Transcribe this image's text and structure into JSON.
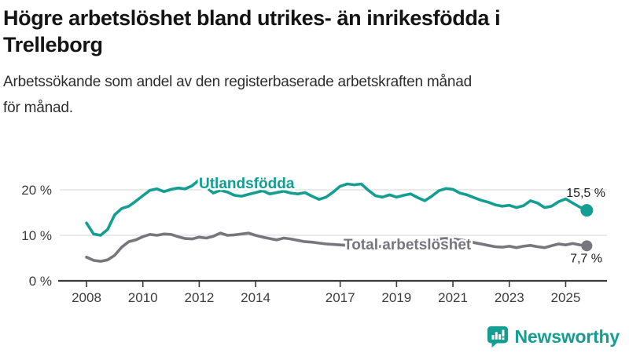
{
  "header": {
    "title_line1": "Högre arbetslöshet bland utrikes- än inrikesfödda i",
    "title_line2": "Trelleborg",
    "subtitle_line1": "Arbetssökande som andel av den registerbaserade arbetskraften månad",
    "subtitle_line2": "för månad."
  },
  "colors": {
    "teal": "#149e91",
    "gray": "#76767c",
    "axis_text": "#3c3c3c",
    "gridline": "#dcdcdc",
    "baseline": "#3a3a3a",
    "value_label": "#222222"
  },
  "chart_data": {
    "type": "line",
    "title": "Högre arbetslöshet bland utrikes- än inrikesfödda i Trelleborg",
    "subtitle": "Arbetssökande som andel av den registerbaserade arbetskraften månad för månad.",
    "xlabel": "",
    "ylabel": "",
    "xlim": [
      2007.05,
      2026.45
    ],
    "ylim": [
      0,
      26
    ],
    "grid": "horizontal",
    "legend_position": "inline-labels",
    "y_ticks": [
      {
        "value": 0,
        "label": "0 %"
      },
      {
        "value": 10,
        "label": "10 %"
      },
      {
        "value": 20,
        "label": "20 %"
      }
    ],
    "x_ticks": [
      {
        "value": 2008,
        "label": "2008"
      },
      {
        "value": 2010,
        "label": "2010"
      },
      {
        "value": 2012,
        "label": "2012"
      },
      {
        "value": 2014,
        "label": "2014"
      },
      {
        "value": 2017,
        "label": "2017"
      },
      {
        "value": 2019,
        "label": "2019"
      },
      {
        "value": 2021,
        "label": "2021"
      },
      {
        "value": 2023,
        "label": "2023"
      },
      {
        "value": 2025,
        "label": "2025"
      }
    ],
    "x": [
      2008.0,
      2008.25,
      2008.5,
      2008.75,
      2009.0,
      2009.25,
      2009.5,
      2009.75,
      2010.0,
      2010.25,
      2010.5,
      2010.75,
      2011.0,
      2011.25,
      2011.5,
      2011.75,
      2012.0,
      2012.25,
      2012.5,
      2012.75,
      2013.0,
      2013.25,
      2013.5,
      2013.75,
      2014.0,
      2014.25,
      2014.5,
      2014.75,
      2015.0,
      2015.25,
      2015.5,
      2015.75,
      2016.0,
      2016.25,
      2016.5,
      2016.75,
      2017.0,
      2017.25,
      2017.5,
      2017.75,
      2018.0,
      2018.25,
      2018.5,
      2018.75,
      2019.0,
      2019.25,
      2019.5,
      2019.75,
      2020.0,
      2020.25,
      2020.5,
      2020.75,
      2021.0,
      2021.25,
      2021.5,
      2021.75,
      2022.0,
      2022.25,
      2022.5,
      2022.75,
      2023.0,
      2023.25,
      2023.5,
      2023.75,
      2024.0,
      2024.25,
      2024.5,
      2024.75,
      2025.0,
      2025.25,
      2025.5,
      2025.75
    ],
    "series": [
      {
        "name": "Utlandsfödda",
        "color": "#149e91",
        "end_label": "15,5 %",
        "end_value": 15.5,
        "values": [
          12.7,
          10.3,
          10.0,
          11.3,
          14.5,
          15.9,
          16.4,
          17.5,
          18.7,
          19.9,
          20.2,
          19.6,
          20.1,
          20.4,
          20.2,
          20.9,
          22.2,
          20.6,
          19.3,
          19.9,
          19.5,
          18.8,
          18.6,
          19.0,
          19.4,
          19.8,
          19.1,
          19.4,
          19.7,
          19.3,
          19.1,
          19.4,
          18.6,
          17.9,
          18.4,
          19.5,
          20.8,
          21.3,
          21.1,
          21.3,
          19.9,
          18.7,
          18.4,
          18.9,
          18.4,
          18.8,
          19.1,
          18.3,
          17.6,
          18.6,
          19.8,
          20.3,
          20.1,
          19.3,
          18.9,
          18.3,
          17.7,
          17.3,
          16.7,
          16.4,
          16.6,
          16.1,
          16.5,
          17.6,
          17.1,
          16.1,
          16.4,
          17.4,
          18.0,
          17.1,
          16.2,
          15.5
        ]
      },
      {
        "name": "Total arbetslöshet",
        "color": "#76767c",
        "end_label": "7,7 %",
        "end_value": 7.7,
        "values": [
          5.2,
          4.5,
          4.3,
          4.6,
          5.6,
          7.4,
          8.6,
          9.0,
          9.7,
          10.2,
          10.0,
          10.3,
          10.2,
          9.7,
          9.3,
          9.2,
          9.6,
          9.4,
          9.8,
          10.5,
          10.0,
          10.1,
          10.3,
          10.5,
          10.0,
          9.6,
          9.3,
          9.0,
          9.4,
          9.2,
          8.9,
          8.6,
          8.5,
          8.3,
          8.1,
          8.0,
          7.9,
          7.8,
          7.9,
          7.7,
          7.6,
          7.5,
          7.6,
          7.7,
          7.8,
          7.9,
          8.0,
          8.2,
          8.4,
          8.9,
          9.2,
          9.3,
          9.2,
          9.0,
          8.8,
          8.4,
          8.1,
          7.8,
          7.5,
          7.4,
          7.6,
          7.3,
          7.6,
          7.8,
          7.5,
          7.3,
          7.7,
          8.1,
          7.9,
          8.2,
          7.9,
          7.7
        ]
      }
    ]
  },
  "footer": {
    "brand": "Newsworthy",
    "logo_icon": "speech-bubble-bar-chart-icon"
  }
}
